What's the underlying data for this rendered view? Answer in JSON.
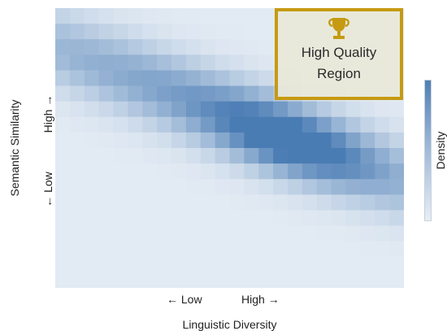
{
  "chart_data": {
    "type": "heatmap",
    "title": "",
    "xlabel": "Linguistic Diversity",
    "ylabel": "Semantic Similarity",
    "x_tick_labels": [
      "← Low",
      "High →"
    ],
    "y_tick_labels": [
      "← Low",
      "High →"
    ],
    "colorbar_label": "Density",
    "legend_position": "right",
    "grid": false,
    "colors": {
      "high": "#4a7cb4",
      "low": "#e2eaf3",
      "callout_border": "#c69a12",
      "trophy": "#c69a12"
    },
    "annotation": {
      "lines": [
        "High Quality",
        "Region"
      ],
      "icon": "trophy-icon",
      "corner": "top-right"
    },
    "grid_size": {
      "cols": 24,
      "rows": 18
    },
    "density_model": {
      "diagonal_band": {
        "centre_x": 0.5,
        "centre_y": 0.38,
        "direction": [
          0.72,
          0.35
        ],
        "along_spread": 0.62,
        "across_spread": 0.085
      },
      "peak": {
        "centre_x": 0.67,
        "centre_y": 0.52,
        "spread": 0.17,
        "weight": 0.55
      }
    }
  }
}
